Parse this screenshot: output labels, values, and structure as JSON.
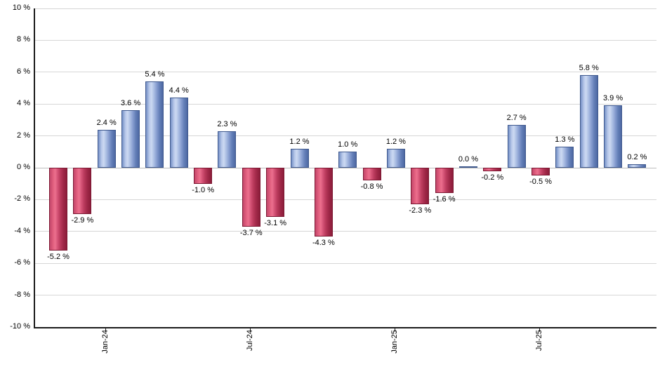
{
  "chart_data": {
    "type": "bar",
    "title": "",
    "xlabel": "",
    "ylabel": "",
    "unit": "%",
    "values": [
      -5.2,
      -2.9,
      2.4,
      3.6,
      5.4,
      4.4,
      -1.0,
      2.3,
      -3.7,
      -3.1,
      1.2,
      -4.3,
      1.0,
      -0.8,
      1.2,
      -2.3,
      -1.6,
      0.0,
      -0.2,
      2.7,
      -0.5,
      1.3,
      5.8,
      3.9,
      0.2
    ],
    "bar_labels": [
      "-5.2 %",
      "-2.9 %",
      "2.4 %",
      "3.6 %",
      "5.4 %",
      "4.4 %",
      "-1.0 %",
      "2.3 %",
      "-3.7 %",
      "-3.1 %",
      "1.2 %",
      "-4.3 %",
      "1.0 %",
      "-0.8 %",
      "1.2 %",
      "-2.3 %",
      "-1.6 %",
      "0.0 %",
      "-0.2 %",
      "2.7 %",
      "-0.5 %",
      "1.3 %",
      "5.8 %",
      "3.9 %",
      "0.2 %"
    ],
    "ylim": [
      -10,
      10
    ],
    "y_tick_values": [
      10,
      8,
      6,
      4,
      2,
      0,
      -2,
      -4,
      -6,
      -8,
      -10
    ],
    "y_tick_labels": [
      "10 %",
      "8 %",
      "6 %",
      "4 %",
      "2 %",
      "0 %",
      "-2 %",
      "-4 %",
      "-6 %",
      "-8 %",
      "-10 %"
    ],
    "x_ticks": [
      {
        "label": "Jan-24",
        "index": 2
      },
      {
        "label": "Jul-24",
        "index": 8
      },
      {
        "label": "Jan-25",
        "index": 14
      },
      {
        "label": "Jul-25",
        "index": 20
      }
    ],
    "grid": true,
    "legend": false,
    "colors": {
      "positive_bar_light": "#ccd9f2",
      "positive_bar_dark": "#4d68a2",
      "positive_bar_border": "#3f598e",
      "negative_bar_light": "#ec6f8e",
      "negative_bar_dark": "#8c1d3a",
      "negative_bar_border": "#7c1832",
      "gridline": "#d6d6d6",
      "zero_line": "#bdbdbd",
      "axis": "#1c1c1c",
      "label_text": "#000000",
      "background": "#ffffff"
    }
  }
}
